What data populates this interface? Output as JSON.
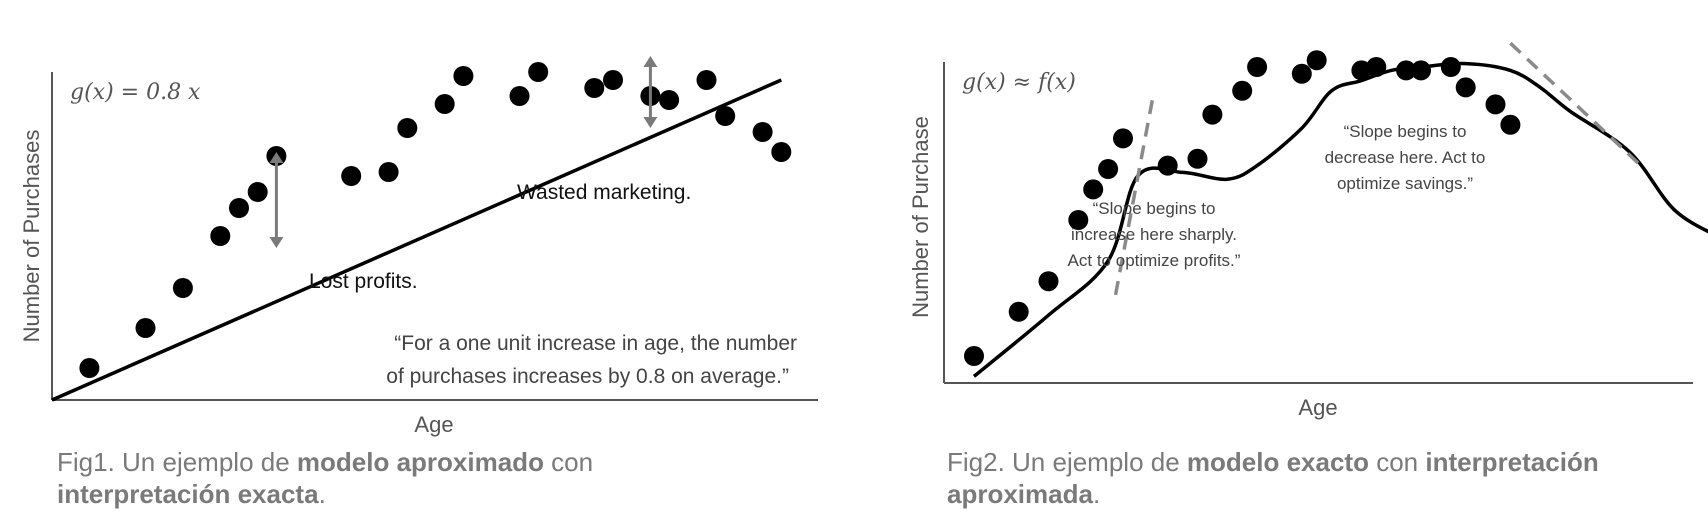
{
  "chart_data": [
    {
      "type": "scatter",
      "formula": "g(x) = 0.8 x",
      "xlabel": "Age",
      "ylabel": "Number of Purchases",
      "grid": false,
      "fit_line": {
        "from": [
          0,
          0
        ],
        "to": [
          39,
          0.8
        ]
      },
      "points": [
        [
          2,
          0.08
        ],
        [
          5,
          0.18
        ],
        [
          7,
          0.28
        ],
        [
          9,
          0.41
        ],
        [
          10,
          0.48
        ],
        [
          11,
          0.52
        ],
        [
          12,
          0.61
        ],
        [
          16,
          0.56
        ],
        [
          18,
          0.57
        ],
        [
          19,
          0.68
        ],
        [
          21,
          0.74
        ],
        [
          22,
          0.81
        ],
        [
          25,
          0.76
        ],
        [
          26,
          0.82
        ],
        [
          29,
          0.78
        ],
        [
          30,
          0.8
        ],
        [
          32,
          0.76
        ],
        [
          33,
          0.75
        ],
        [
          35,
          0.8
        ],
        [
          36,
          0.71
        ],
        [
          38,
          0.67
        ],
        [
          39,
          0.62
        ]
      ],
      "annotations": [
        {
          "text": "Wasted marketing.",
          "arrow": {
            "x": 32,
            "from": 0.68,
            "to": 0.86
          }
        },
        {
          "text": "Lost profits.",
          "arrow": {
            "x": 12,
            "from": 0.38,
            "to": 0.62
          }
        }
      ],
      "quote_lines": [
        "“For a one unit increase in age, the number",
        "of purchases increases by 0.8 on average.”"
      ],
      "caption": {
        "pre": "Fig1. Un ejemplo de ",
        "bold1": "modelo aproximado",
        "mid": " con",
        "bold2": "interpretación exacta",
        "post": "."
      }
    },
    {
      "type": "scatter",
      "formula": "g(x)  ≈ f(x)",
      "xlabel": "Age",
      "ylabel": "Number of Purchase",
      "grid": false,
      "curve": [
        [
          0,
          0.04
        ],
        [
          5,
          0.22
        ],
        [
          9,
          0.38
        ],
        [
          11,
          0.63
        ],
        [
          14,
          0.64
        ],
        [
          17,
          0.62
        ],
        [
          19,
          0.66
        ],
        [
          22,
          0.77
        ],
        [
          24,
          0.88
        ],
        [
          26,
          0.91
        ],
        [
          28,
          0.94
        ],
        [
          30,
          0.95
        ],
        [
          33,
          0.96
        ],
        [
          36,
          0.94
        ],
        [
          38,
          0.89
        ],
        [
          40,
          0.82
        ],
        [
          44,
          0.7
        ],
        [
          47,
          0.53
        ],
        [
          50,
          0.45
        ]
      ],
      "tangents": [
        {
          "from": [
            9.5,
            0.28
          ],
          "to": [
            12,
            0.86
          ]
        },
        {
          "from": [
            36,
            1.02
          ],
          "to": [
            45,
            0.65
          ]
        }
      ],
      "points": [
        [
          0,
          0.1
        ],
        [
          3,
          0.23
        ],
        [
          5,
          0.32
        ],
        [
          7,
          0.5
        ],
        [
          8,
          0.59
        ],
        [
          9,
          0.65
        ],
        [
          10,
          0.74
        ],
        [
          13,
          0.66
        ],
        [
          15,
          0.68
        ],
        [
          16,
          0.81
        ],
        [
          18,
          0.88
        ],
        [
          19,
          0.95
        ],
        [
          22,
          0.93
        ],
        [
          23,
          0.97
        ],
        [
          26,
          0.94
        ],
        [
          27,
          0.95
        ],
        [
          29,
          0.94
        ],
        [
          30,
          0.94
        ],
        [
          32,
          0.95
        ],
        [
          33,
          0.89
        ],
        [
          35,
          0.84
        ],
        [
          36,
          0.78
        ]
      ],
      "annotations": [
        {
          "lines": [
            "“Slope begins to",
            "increase here sharply.",
            "Act to optimize profits.”"
          ]
        },
        {
          "lines": [
            "“Slope begins to",
            "decrease here. Act to",
            "optimize savings.”"
          ]
        }
      ],
      "caption": {
        "pre": "Fig2. Un ejemplo de ",
        "bold1": "modelo exacto",
        "mid": " con ",
        "bold2": "interpretación",
        "bold3": "aproximada",
        "post": "."
      }
    }
  ]
}
